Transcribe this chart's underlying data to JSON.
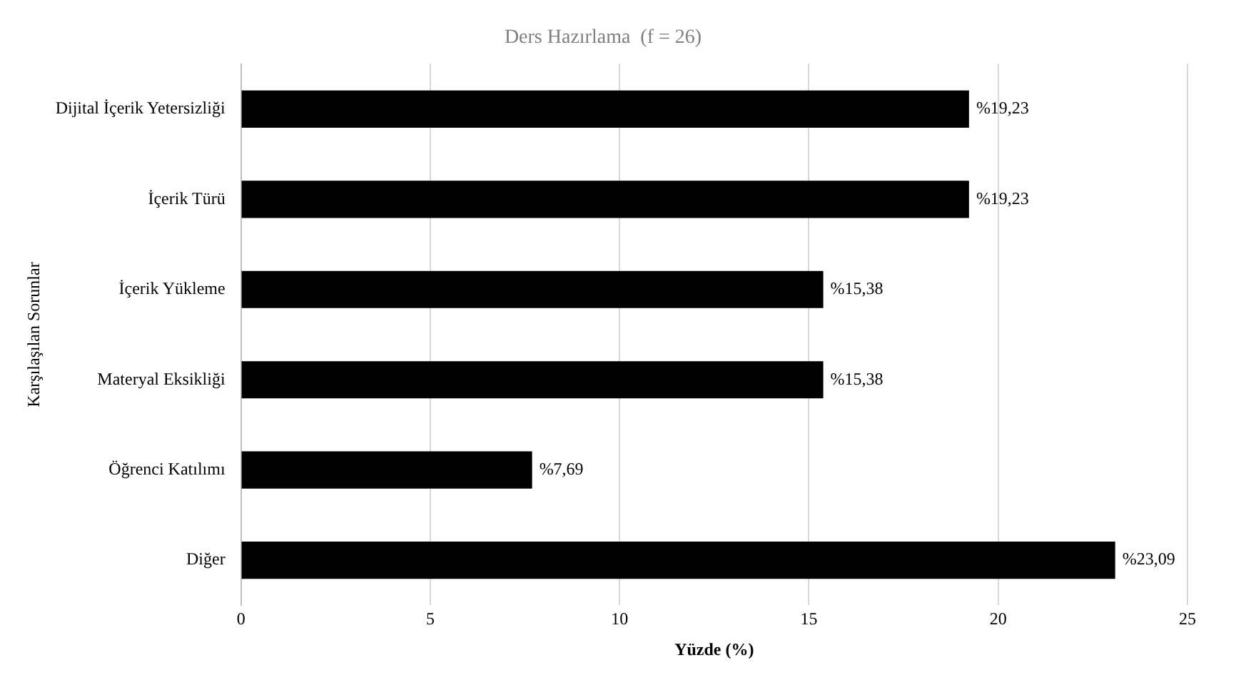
{
  "chart_data": {
    "type": "bar",
    "orientation": "horizontal",
    "title": "Ders Hazırlama  (f = 26)",
    "xlabel": "Yüzde (%)",
    "ylabel": "Karşılaşılan Sorunlar",
    "categories": [
      "Dijital İçerik Yetersizliği",
      "İçerik Türü",
      "İçerik Yükleme",
      "Materyal Eksikliği",
      "Öğrenci Katılımı",
      "Diğer"
    ],
    "values": [
      19.23,
      19.23,
      15.38,
      15.38,
      7.69,
      23.09
    ],
    "value_labels": [
      "%19,23",
      "%19,23",
      "%15,38",
      "%15,38",
      "%7,69",
      "%23,09"
    ],
    "color": "#000000",
    "xlim": [
      0,
      25
    ],
    "xticks": [
      0,
      5,
      10,
      15,
      20,
      25
    ],
    "grid": "x"
  }
}
